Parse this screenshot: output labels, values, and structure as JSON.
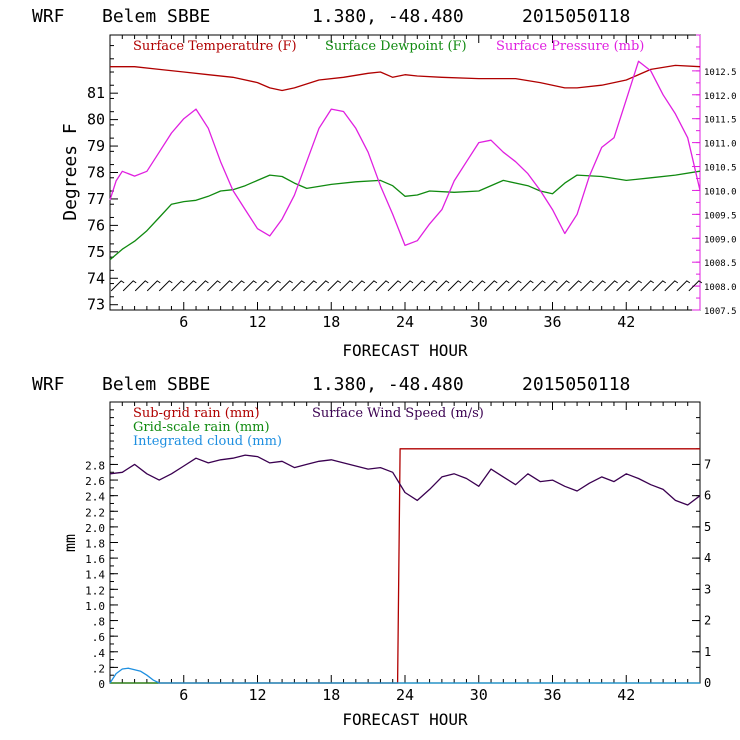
{
  "colors": {
    "temperature": "#b00000",
    "dewpoint": "#108a10",
    "pressure": "#e020e0",
    "subgrid": "#b00000",
    "gridscale": "#108a10",
    "cloud": "#1e8fe0",
    "wind": "#3a0050",
    "axis": "#000000",
    "wind_barb": "#000000"
  },
  "chart_data": [
    {
      "type": "line",
      "header": {
        "model": "WRF",
        "station": "Belem SBBE",
        "coords": "1.380, -48.480",
        "date": "2015050118"
      },
      "xlabel": "FORECAST HOUR",
      "ylabel": "Degrees F",
      "xlim": [
        0,
        48
      ],
      "ylim_left": [
        72.8,
        83.2
      ],
      "ylim_right": [
        1007.5,
        1013.25
      ],
      "x_ticks": [
        6,
        12,
        18,
        24,
        30,
        36,
        42
      ],
      "y_ticks_left": [
        73,
        74,
        75,
        76,
        77,
        78,
        79,
        80,
        81
      ],
      "y_ticks_right": [
        1007.5,
        1008.0,
        1008.5,
        1009.0,
        1009.5,
        1010.0,
        1010.5,
        1011.0,
        1011.5,
        1012.0,
        1012.5
      ],
      "y_tick_labels_right": [
        "1007.5",
        "1008.0",
        "1008.5",
        "1009.0",
        "1009.5",
        "1010.0",
        "1010.5",
        "1011.0",
        "1011.5",
        "1012.0",
        "1012.5"
      ],
      "legend": [
        "Surface Temperature (F)",
        "Surface Dewpoint (F)",
        "Surface Pressure (mb)"
      ],
      "series": [
        {
          "name": "Surface Temperature (F)",
          "axis": "left",
          "x": [
            0,
            1,
            2,
            4,
            6,
            8,
            10,
            12,
            13,
            14,
            15,
            17,
            19,
            21,
            22,
            23,
            24,
            25,
            27,
            30,
            33,
            35,
            36,
            37,
            38,
            40,
            42,
            44,
            46,
            48
          ],
          "y": [
            82.0,
            82.0,
            82.0,
            81.9,
            81.8,
            81.7,
            81.6,
            81.4,
            81.2,
            81.1,
            81.2,
            81.5,
            81.6,
            81.75,
            81.8,
            81.6,
            81.7,
            81.65,
            81.6,
            81.55,
            81.55,
            81.4,
            81.3,
            81.2,
            81.2,
            81.3,
            81.5,
            81.9,
            82.05,
            82.0
          ]
        },
        {
          "name": "Surface Dewpoint (F)",
          "axis": "left",
          "x": [
            0,
            1,
            2,
            3,
            4,
            5,
            6,
            7,
            8,
            9,
            10,
            11,
            12,
            13,
            14,
            15,
            16,
            18,
            20,
            22,
            23,
            24,
            25,
            26,
            28,
            30,
            32,
            34,
            35,
            36,
            37,
            38,
            40,
            42,
            44,
            46,
            48
          ],
          "y": [
            74.7,
            75.1,
            75.4,
            75.8,
            76.3,
            76.8,
            76.9,
            76.95,
            77.1,
            77.3,
            77.35,
            77.5,
            77.7,
            77.9,
            77.85,
            77.6,
            77.4,
            77.55,
            77.65,
            77.7,
            77.5,
            77.1,
            77.15,
            77.3,
            77.25,
            77.3,
            77.7,
            77.5,
            77.3,
            77.2,
            77.6,
            77.9,
            77.85,
            77.7,
            77.8,
            77.9,
            78.05
          ]
        },
        {
          "name": "Surface Pressure (mb)",
          "axis": "right",
          "x": [
            0,
            0.5,
            1,
            2,
            3,
            4,
            5,
            6,
            7,
            8,
            9,
            10,
            11,
            12,
            13,
            14,
            15,
            16,
            17,
            18,
            19,
            20,
            21,
            22,
            23,
            24,
            25,
            26,
            27,
            28,
            29,
            30,
            31,
            32,
            33,
            34,
            35,
            36,
            37,
            38,
            39,
            40,
            41,
            42,
            43,
            44,
            45,
            46,
            47,
            48
          ],
          "y": [
            1009.8,
            1010.2,
            1010.4,
            1010.3,
            1010.4,
            1010.8,
            1011.2,
            1011.5,
            1011.7,
            1011.3,
            1010.6,
            1010.0,
            1009.6,
            1009.2,
            1009.05,
            1009.4,
            1009.9,
            1010.6,
            1011.3,
            1011.7,
            1011.65,
            1011.3,
            1010.8,
            1010.1,
            1009.5,
            1008.85,
            1008.95,
            1009.3,
            1009.6,
            1010.2,
            1010.6,
            1011.0,
            1011.05,
            1010.8,
            1010.6,
            1010.35,
            1010.0,
            1009.6,
            1009.1,
            1009.5,
            1010.3,
            1010.9,
            1011.1,
            1011.9,
            1012.7,
            1012.5,
            1012.0,
            1011.6,
            1011.1,
            1010.0
          ]
        }
      ],
      "wind_barbs": {
        "y_level": 73.75,
        "x_start": 0.5,
        "x_end": 47.5,
        "count": 49
      }
    },
    {
      "type": "line",
      "header": {
        "model": "WRF",
        "station": "Belem SBBE",
        "coords": "1.380, -48.480",
        "date": "2015050118"
      },
      "xlabel": "FORECAST HOUR",
      "ylabel": "mm",
      "xlim": [
        0,
        48
      ],
      "ylim_left": [
        0,
        3.6
      ],
      "ylim_right": [
        0,
        9
      ],
      "x_ticks": [
        6,
        12,
        18,
        24,
        30,
        36,
        42
      ],
      "y_ticks_left": [
        0,
        0.2,
        0.4,
        0.6,
        0.8,
        1.0,
        1.2,
        1.4,
        1.6,
        1.8,
        2.0,
        2.2,
        2.4,
        2.6,
        2.8
      ],
      "y_tick_labels_left": [
        "0",
        ".2",
        ".4",
        ".6",
        ".8",
        "1.0",
        "1.2",
        "1.4",
        "1.6",
        "1.8",
        "2.0",
        "2.2",
        "2.4",
        "2.6",
        "2.8"
      ],
      "y_ticks_right": [
        0,
        1,
        2,
        3,
        4,
        5,
        6,
        7
      ],
      "legend": [
        "Sub-grid rain (mm)",
        "Surface Wind Speed (m/s)",
        "Grid-scale rain (mm)",
        "Integrated cloud (mm)"
      ],
      "series": [
        {
          "name": "Sub-grid rain (mm)",
          "axis": "left",
          "x": [
            0,
            23.1,
            23.4,
            23.6,
            48
          ],
          "y": [
            0,
            0,
            0,
            3.0,
            3.0
          ]
        },
        {
          "name": "Grid-scale rain (mm)",
          "axis": "left",
          "x": [
            0,
            48
          ],
          "y": [
            0,
            0
          ]
        },
        {
          "name": "Integrated cloud (mm)",
          "axis": "left",
          "x": [
            0,
            0.5,
            1,
            1.5,
            2,
            2.5,
            3,
            3.5,
            4,
            48
          ],
          "y": [
            0,
            0.12,
            0.18,
            0.19,
            0.17,
            0.15,
            0.1,
            0.04,
            0,
            0
          ]
        },
        {
          "name": "Surface Wind Speed (m/s)",
          "axis": "right",
          "x": [
            0,
            1,
            2,
            3,
            4,
            5,
            6,
            7,
            8,
            9,
            10,
            11,
            12,
            13,
            14,
            15,
            16,
            17,
            18,
            19,
            20,
            21,
            22,
            23,
            24,
            25,
            26,
            27,
            28,
            29,
            30,
            31,
            32,
            33,
            34,
            35,
            36,
            37,
            38,
            39,
            40,
            41,
            42,
            43,
            44,
            45,
            46,
            47,
            48
          ],
          "y": [
            6.7,
            6.75,
            7.0,
            6.7,
            6.5,
            6.7,
            6.95,
            7.2,
            7.05,
            7.15,
            7.2,
            7.3,
            7.25,
            7.05,
            7.1,
            6.9,
            7.0,
            7.1,
            7.15,
            7.05,
            6.95,
            6.85,
            6.9,
            6.75,
            6.1,
            5.85,
            6.2,
            6.6,
            6.7,
            6.55,
            6.3,
            6.85,
            6.6,
            6.35,
            6.7,
            6.45,
            6.5,
            6.3,
            6.15,
            6.4,
            6.6,
            6.45,
            6.7,
            6.55,
            6.35,
            6.2,
            5.85,
            5.7,
            6.0
          ]
        }
      ]
    }
  ]
}
